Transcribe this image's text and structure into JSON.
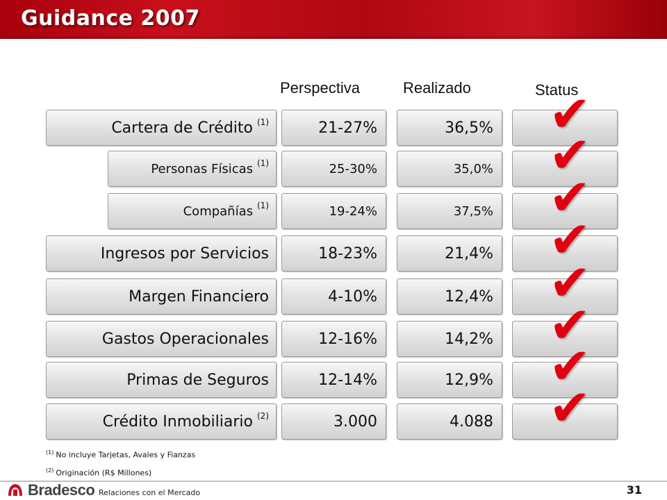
{
  "title": "Guidance 2007",
  "headers": {
    "perspectiva": "Perspectiva",
    "realizado": "Realizado",
    "status": "Status"
  },
  "rows": [
    {
      "label": "Cartera de Crédito",
      "ref": "(1)",
      "perspectiva": "21-27%",
      "realizado": "36,5%",
      "status": "check"
    },
    {
      "label": "Personas Físicas",
      "ref": "(1)",
      "perspectiva": "25-30%",
      "realizado": "35,0%",
      "status": "check"
    },
    {
      "label": "Compañías",
      "ref": "(1)",
      "perspectiva": "19-24%",
      "realizado": "37,5%",
      "status": "check"
    },
    {
      "label": "Ingresos por Servicios",
      "ref": "",
      "perspectiva": "18-23%",
      "realizado": "21,4%",
      "status": "check"
    },
    {
      "label": "Margen Financiero",
      "ref": "",
      "perspectiva": "4-10%",
      "realizado": "12,4%",
      "status": "check"
    },
    {
      "label": "Gastos Operacionales",
      "ref": "",
      "perspectiva": "12-16%",
      "realizado": "14,2%",
      "status": "check"
    },
    {
      "label": "Primas de Seguros",
      "ref": "",
      "perspectiva": "12-14%",
      "realizado": "12,9%",
      "status": "check"
    },
    {
      "label": "Crédito Inmobiliario",
      "ref": "(2)",
      "perspectiva": "3.000",
      "realizado": "4.088",
      "status": "check"
    }
  ],
  "check_glyph": "✔",
  "check_color": "#e00010",
  "accent_color": "#b00812",
  "footnotes": [
    {
      "ref": "(1)",
      "text": "No incluye Tarjetas, Avales y Fianzas"
    },
    {
      "ref": "(2)",
      "text": "Originación  (R$ Millones)"
    }
  ],
  "footer": {
    "brand": "Bradesco",
    "subtitle": "Relaciones  con el Mercado",
    "page": "31"
  }
}
